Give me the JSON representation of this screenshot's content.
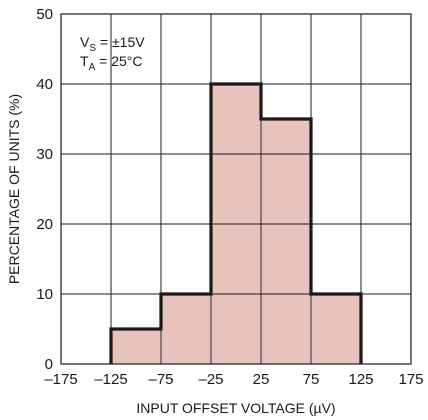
{
  "chart_data": {
    "type": "bar",
    "x_bin_edges": [
      -125,
      -75,
      -25,
      25,
      75,
      125
    ],
    "values": [
      5,
      10,
      40,
      35,
      10
    ],
    "xlabel": "INPUT OFFSET VOLTAGE (µV)",
    "ylabel": "PERCENTAGE OF UNITS (%)",
    "xlim": [
      -175,
      175
    ],
    "ylim": [
      0,
      50
    ],
    "x_ticks": [
      -175,
      -125,
      -75,
      -25,
      25,
      75,
      125,
      175
    ],
    "y_ticks": [
      0,
      10,
      20,
      30,
      40,
      50
    ],
    "x_tick_labels": [
      "–175",
      "–125",
      "–75",
      "–25",
      "25",
      "75",
      "125",
      "175"
    ],
    "y_tick_labels": [
      "0",
      "10",
      "20",
      "30",
      "40",
      "50"
    ],
    "grid": true,
    "bar_fill": "#e8c2bd",
    "bar_edge": "#1a1a1a",
    "annotations": [
      {
        "main": "V",
        "sub": "S",
        "rest": " = ±15V"
      },
      {
        "main": "T",
        "sub": "A",
        "rest": " = 25°C"
      }
    ]
  }
}
